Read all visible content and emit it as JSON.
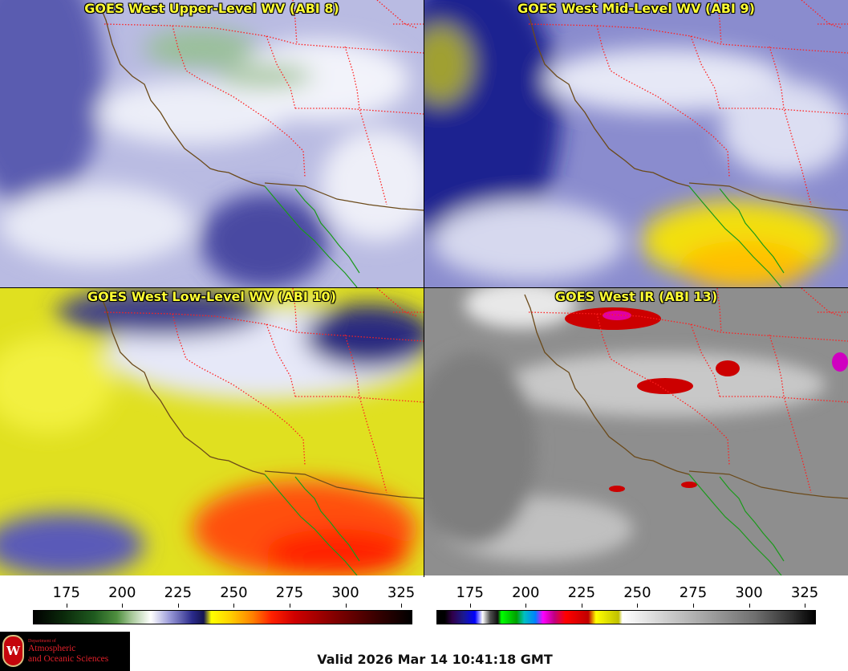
{
  "panels": [
    {
      "title": "GOES West Upper-Level WV (ABI 8)",
      "palette": "wv"
    },
    {
      "title": "GOES West Mid-Level WV (ABI 9)",
      "palette": "wv"
    },
    {
      "title": "GOES West Low-Level WV (ABI 10)",
      "palette": "wv"
    },
    {
      "title": "GOES West IR (ABI 13)",
      "palette": "ir"
    }
  ],
  "colorbars": [
    {
      "name": "water-vapor",
      "ticks": [
        "175",
        "200",
        "225",
        "250",
        "275",
        "300",
        "325"
      ],
      "min": 160,
      "max": 330
    },
    {
      "name": "infrared",
      "ticks": [
        "175",
        "200",
        "225",
        "250",
        "275",
        "300",
        "325"
      ],
      "min": 160,
      "max": 330
    }
  ],
  "logo": {
    "dept": "Department of",
    "line1": "Atmospheric",
    "line2": "and Oceanic Sciences",
    "seal_letter": "W"
  },
  "valid_time": "Valid 2026 Mar 14 10:41:18 GMT",
  "colors": {
    "title_text": "#ffff33",
    "state_borders": "#ff2020",
    "coastline": "#6b4a1a",
    "mexico_coast": "#1a9a1a"
  }
}
